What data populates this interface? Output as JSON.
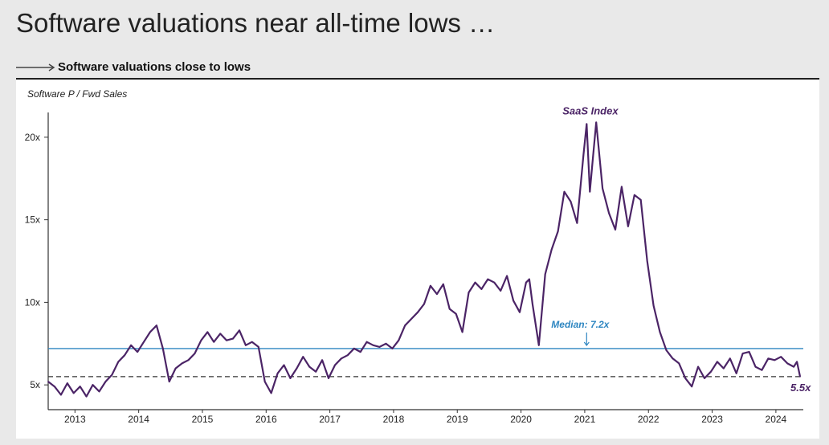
{
  "header": {
    "title": "Software valuations near all-time lows …",
    "subtitle": "Software valuations close to lows"
  },
  "colors": {
    "series": "#4b2466",
    "median": "#2e86c1",
    "axis": "#333333"
  },
  "chart_data": {
    "type": "line",
    "ylabel": "Software P / Fwd Sales",
    "y_ticks": [
      "5x",
      "10x",
      "15x",
      "20x"
    ],
    "y_tick_values": [
      5,
      10,
      15,
      20
    ],
    "x_ticks": [
      "2013",
      "2014",
      "2015",
      "2016",
      "2017",
      "2018",
      "2019",
      "2020",
      "2021",
      "2022",
      "2023",
      "2024"
    ],
    "xlim": [
      2012.6,
      2024.45
    ],
    "ylim": [
      3.5,
      21.5
    ],
    "median": {
      "value": 7.2,
      "label": "Median: 7.2x"
    },
    "current": {
      "value": 5.5,
      "label": "5.5x"
    },
    "annotation": "SaaS Index",
    "series": [
      {
        "name": "SaaS Index",
        "x": [
          2012.6,
          2012.7,
          2012.8,
          2012.9,
          2013.0,
          2013.1,
          2013.2,
          2013.3,
          2013.4,
          2013.5,
          2013.6,
          2013.7,
          2013.8,
          2013.9,
          2014.0,
          2014.1,
          2014.2,
          2014.3,
          2014.4,
          2014.5,
          2014.6,
          2014.7,
          2014.8,
          2014.9,
          2015.0,
          2015.1,
          2015.2,
          2015.3,
          2015.4,
          2015.5,
          2015.6,
          2015.7,
          2015.8,
          2015.9,
          2016.0,
          2016.1,
          2016.2,
          2016.3,
          2016.4,
          2016.5,
          2016.6,
          2016.7,
          2016.8,
          2016.9,
          2017.0,
          2017.1,
          2017.2,
          2017.3,
          2017.4,
          2017.5,
          2017.6,
          2017.7,
          2017.8,
          2017.9,
          2018.0,
          2018.1,
          2018.2,
          2018.3,
          2018.4,
          2018.5,
          2018.6,
          2018.7,
          2018.8,
          2018.9,
          2019.0,
          2019.1,
          2019.2,
          2019.3,
          2019.4,
          2019.5,
          2019.6,
          2019.7,
          2019.8,
          2019.9,
          2020.0,
          2020.1,
          2020.15,
          2020.2,
          2020.3,
          2020.4,
          2020.5,
          2020.6,
          2020.7,
          2020.8,
          2020.9,
          2021.0,
          2021.05,
          2021.1,
          2021.15,
          2021.2,
          2021.3,
          2021.4,
          2021.5,
          2021.6,
          2021.7,
          2021.8,
          2021.9,
          2022.0,
          2022.1,
          2022.2,
          2022.3,
          2022.4,
          2022.5,
          2022.6,
          2022.7,
          2022.8,
          2022.9,
          2023.0,
          2023.1,
          2023.2,
          2023.3,
          2023.4,
          2023.5,
          2023.6,
          2023.7,
          2023.8,
          2023.9,
          2024.0,
          2024.1,
          2024.2,
          2024.3,
          2024.35,
          2024.4
        ],
        "y": [
          5.2,
          4.9,
          4.4,
          5.1,
          4.5,
          4.9,
          4.3,
          5.0,
          4.6,
          5.2,
          5.6,
          6.4,
          6.8,
          7.4,
          7.0,
          7.6,
          8.2,
          8.6,
          7.2,
          5.2,
          6.0,
          6.3,
          6.5,
          6.9,
          7.7,
          8.2,
          7.6,
          8.1,
          7.7,
          7.8,
          8.3,
          7.4,
          7.6,
          7.3,
          5.2,
          4.5,
          5.7,
          6.2,
          5.4,
          6.0,
          6.7,
          6.1,
          5.8,
          6.5,
          5.4,
          6.2,
          6.6,
          6.8,
          7.2,
          7.0,
          7.6,
          7.4,
          7.3,
          7.5,
          7.2,
          7.7,
          8.6,
          9.0,
          9.4,
          9.9,
          11.0,
          10.5,
          11.1,
          9.6,
          9.3,
          8.2,
          10.6,
          11.2,
          10.8,
          11.4,
          11.2,
          10.7,
          11.6,
          10.1,
          9.4,
          11.2,
          11.4,
          9.9,
          7.4,
          11.7,
          13.2,
          14.3,
          16.7,
          16.1,
          14.8,
          18.9,
          20.8,
          16.7,
          18.8,
          20.9,
          16.9,
          15.4,
          14.4,
          17.0,
          14.6,
          16.5,
          16.2,
          12.5,
          9.8,
          8.2,
          7.1,
          6.6,
          6.3,
          5.4,
          4.9,
          6.1,
          5.4,
          5.8,
          6.4,
          6.0,
          6.6,
          5.7,
          6.9,
          7.0,
          6.1,
          5.9,
          6.6,
          6.5,
          6.7,
          6.3,
          6.1,
          6.4,
          5.5
        ]
      }
    ]
  }
}
